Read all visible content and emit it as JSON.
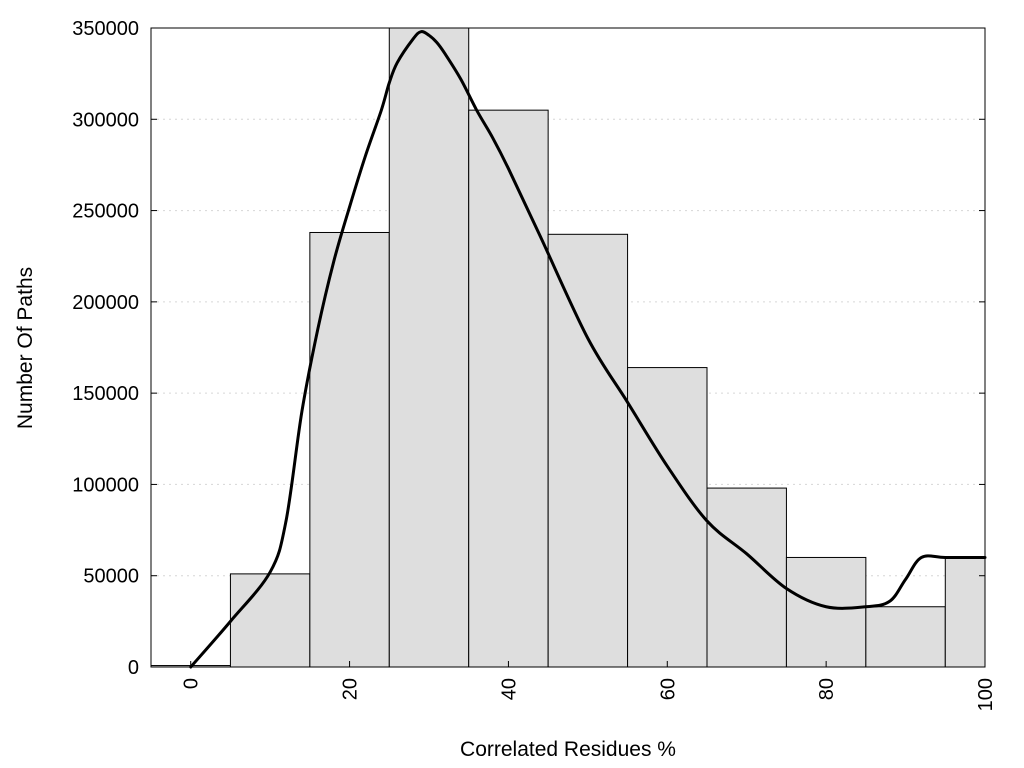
{
  "chart_data": {
    "type": "bar",
    "title": "",
    "xlabel": "Correlated Residues %",
    "ylabel": "Number Of Paths",
    "xlim": [
      -5,
      100
    ],
    "ylim": [
      0,
      350000
    ],
    "grid": "horizontal-dotted",
    "bar_color": "#dedede",
    "bars": [
      {
        "x": 0,
        "value": 800
      },
      {
        "x": 10,
        "value": 51000
      },
      {
        "x": 20,
        "value": 238000
      },
      {
        "x": 30,
        "value": 350000
      },
      {
        "x": 40,
        "value": 305000
      },
      {
        "x": 50,
        "value": 237000
      },
      {
        "x": 60,
        "value": 164000
      },
      {
        "x": 70,
        "value": 98000
      },
      {
        "x": 80,
        "value": 60000
      },
      {
        "x": 90,
        "value": 33000
      },
      {
        "x": 100,
        "value": 60500
      }
    ],
    "curve": {
      "x": [
        0,
        5,
        10,
        12,
        14,
        16,
        18,
        20,
        22,
        24,
        25,
        26,
        28,
        29,
        30,
        31,
        32,
        34,
        36,
        38,
        40,
        44,
        50,
        55,
        60,
        65,
        70,
        75,
        80,
        85,
        88,
        90,
        92,
        95,
        100
      ],
      "y": [
        0,
        25000,
        52000,
        80000,
        140000,
        185000,
        222000,
        252000,
        280000,
        305000,
        320000,
        331000,
        344000,
        348000,
        346000,
        342000,
        336000,
        322000,
        305000,
        290000,
        273000,
        236000,
        180000,
        145000,
        110000,
        80000,
        62000,
        43000,
        33000,
        33000,
        36000,
        48000,
        60000,
        60000,
        60000
      ]
    },
    "x_ticks": [
      "0",
      "20",
      "40",
      "60",
      "80",
      "100"
    ],
    "x_tick_values": [
      0,
      20,
      40,
      60,
      80,
      100
    ],
    "y_ticks": [
      "0",
      "50000",
      "100000",
      "150000",
      "200000",
      "250000",
      "300000",
      "350000"
    ],
    "y_tick_values": [
      0,
      50000,
      100000,
      150000,
      200000,
      250000,
      300000,
      350000
    ]
  }
}
